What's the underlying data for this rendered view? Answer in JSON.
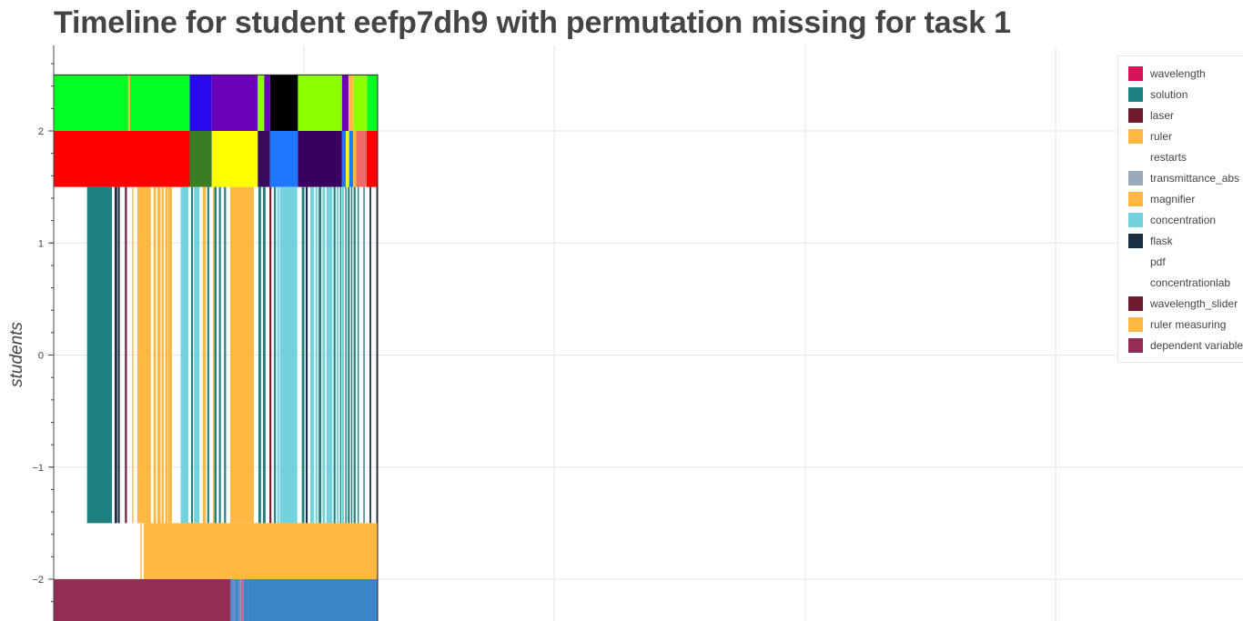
{
  "chart_data": {
    "type": "timeline",
    "title": "Timeline for student eefp7dh9 with permutation missing for task 1",
    "ylabel": "students",
    "yticks": [
      2,
      1,
      0,
      -1,
      -2
    ],
    "ytick_labels": [
      "2",
      "1",
      "0",
      "−1",
      "−2"
    ],
    "grid": true,
    "legend_position": "top-right",
    "legend": [
      {
        "label": "wavelength",
        "color": "#d6145c"
      },
      {
        "label": "solution",
        "color": "#1f8080"
      },
      {
        "label": "laser",
        "color": "#6e1a2e"
      },
      {
        "label": "ruler",
        "color": "#ffb844"
      },
      {
        "label": "restarts",
        "color": "#ffffff"
      },
      {
        "label": "transmittance_abs",
        "color": "#9aa8bb"
      },
      {
        "label": "magnifier",
        "color": "#ffb844"
      },
      {
        "label": "concentration",
        "color": "#74d2dc"
      },
      {
        "label": "flask",
        "color": "#1b2d45"
      },
      {
        "label": "pdf",
        "color": "#ffffff"
      },
      {
        "label": "concentrationlab",
        "color": "#ffffff"
      },
      {
        "label": "wavelength_slider",
        "color": "#6e1a2e"
      },
      {
        "label": "ruler measuring",
        "color": "#ffb844"
      },
      {
        "label": "dependent variable",
        "color": "#922d55"
      }
    ],
    "rows": [
      {
        "name": "row-top",
        "y0": 2.0,
        "y1": 2.5,
        "segments": [
          {
            "t0": 0.0,
            "t1": 0.23,
            "color": "#00ff22"
          },
          {
            "t0": 0.23,
            "t1": 0.236,
            "color": "#ffb844"
          },
          {
            "t0": 0.236,
            "t1": 0.42,
            "color": "#00ff22"
          },
          {
            "t0": 0.42,
            "t1": 0.488,
            "color": "#2a08f0"
          },
          {
            "t0": 0.488,
            "t1": 0.63,
            "color": "#6a00b8"
          },
          {
            "t0": 0.63,
            "t1": 0.65,
            "color": "#8cff00"
          },
          {
            "t0": 0.65,
            "t1": 0.668,
            "color": "#6a00b8"
          },
          {
            "t0": 0.668,
            "t1": 0.754,
            "color": "#000000"
          },
          {
            "t0": 0.754,
            "t1": 0.89,
            "color": "#8cff00"
          },
          {
            "t0": 0.89,
            "t1": 0.91,
            "color": "#6a00b8"
          },
          {
            "t0": 0.91,
            "t1": 0.926,
            "color": "#ffb844"
          },
          {
            "t0": 0.926,
            "t1": 0.968,
            "color": "#8cff00"
          },
          {
            "t0": 0.968,
            "t1": 1.0,
            "color": "#00ff22"
          }
        ]
      },
      {
        "name": "row-2",
        "y0": 1.5,
        "y1": 2.0,
        "segments": [
          {
            "t0": 0.0,
            "t1": 0.42,
            "color": "#ff0000"
          },
          {
            "t0": 0.42,
            "t1": 0.488,
            "color": "#3a7d24"
          },
          {
            "t0": 0.488,
            "t1": 0.63,
            "color": "#ffff00"
          },
          {
            "t0": 0.63,
            "t1": 0.668,
            "color": "#3a0a5e"
          },
          {
            "t0": 0.668,
            "t1": 0.754,
            "color": "#1f77ff"
          },
          {
            "t0": 0.754,
            "t1": 0.89,
            "color": "#3a0060"
          },
          {
            "t0": 0.89,
            "t1": 0.902,
            "color": "#1f77ff"
          },
          {
            "t0": 0.902,
            "t1": 0.912,
            "color": "#ffff00"
          },
          {
            "t0": 0.912,
            "t1": 0.924,
            "color": "#1f77ff"
          },
          {
            "t0": 0.924,
            "t1": 0.934,
            "color": "#ffb844"
          },
          {
            "t0": 0.934,
            "t1": 0.966,
            "color": "#f06a6a"
          },
          {
            "t0": 0.966,
            "t1": 1.0,
            "color": "#ff0000"
          }
        ]
      },
      {
        "name": "row-1-0-minus1",
        "y0": -1.5,
        "y1": 1.5,
        "segments": [
          {
            "t0": 0.103,
            "t1": 0.18,
            "color": "#1f8080"
          },
          {
            "t0": 0.188,
            "t1": 0.196,
            "color": "#1b2d45"
          },
          {
            "t0": 0.198,
            "t1": 0.204,
            "color": "#1b2d45"
          },
          {
            "t0": 0.22,
            "t1": 0.226,
            "color": "#6e1a2e"
          },
          {
            "t0": 0.242,
            "t1": 0.246,
            "color": "#ffb844"
          },
          {
            "t0": 0.258,
            "t1": 0.3,
            "color": "#ffb844"
          },
          {
            "t0": 0.308,
            "t1": 0.316,
            "color": "#ffb844"
          },
          {
            "t0": 0.32,
            "t1": 0.33,
            "color": "#ffb844"
          },
          {
            "t0": 0.333,
            "t1": 0.34,
            "color": "#ffb844"
          },
          {
            "t0": 0.344,
            "t1": 0.352,
            "color": "#ffb844"
          },
          {
            "t0": 0.353,
            "t1": 0.365,
            "color": "#ffb844"
          },
          {
            "t0": 0.392,
            "t1": 0.416,
            "color": "#74d2dc"
          },
          {
            "t0": 0.424,
            "t1": 0.43,
            "color": "#1f8080"
          },
          {
            "t0": 0.433,
            "t1": 0.45,
            "color": "#74d2dc"
          },
          {
            "t0": 0.46,
            "t1": 0.47,
            "color": "#ffb844"
          },
          {
            "t0": 0.474,
            "t1": 0.48,
            "color": "#1f8080"
          },
          {
            "t0": 0.492,
            "t1": 0.496,
            "color": "#ffb844"
          },
          {
            "t0": 0.496,
            "t1": 0.503,
            "color": "#1f8080"
          },
          {
            "t0": 0.51,
            "t1": 0.516,
            "color": "#1f8080"
          },
          {
            "t0": 0.526,
            "t1": 0.532,
            "color": "#1f8080"
          },
          {
            "t0": 0.545,
            "t1": 0.618,
            "color": "#ffb844"
          },
          {
            "t0": 0.632,
            "t1": 0.64,
            "color": "#1f8080"
          },
          {
            "t0": 0.646,
            "t1": 0.654,
            "color": "#1f8080"
          },
          {
            "t0": 0.666,
            "t1": 0.672,
            "color": "#6e1a2e"
          },
          {
            "t0": 0.68,
            "t1": 0.686,
            "color": "#1f8080"
          },
          {
            "t0": 0.69,
            "t1": 0.696,
            "color": "#74d2dc"
          },
          {
            "t0": 0.698,
            "t1": 0.752,
            "color": "#74d2dc"
          },
          {
            "t0": 0.766,
            "t1": 0.774,
            "color": "#1f8080"
          },
          {
            "t0": 0.778,
            "t1": 0.784,
            "color": "#1b2d45"
          },
          {
            "t0": 0.792,
            "t1": 0.804,
            "color": "#74d2dc"
          },
          {
            "t0": 0.808,
            "t1": 0.814,
            "color": "#74d2dc"
          },
          {
            "t0": 0.818,
            "t1": 0.826,
            "color": "#1f8080"
          },
          {
            "t0": 0.83,
            "t1": 0.838,
            "color": "#74d2dc"
          },
          {
            "t0": 0.842,
            "t1": 0.86,
            "color": "#74d2dc"
          },
          {
            "t0": 0.864,
            "t1": 0.87,
            "color": "#1f8080"
          },
          {
            "t0": 0.874,
            "t1": 0.88,
            "color": "#74d2dc"
          },
          {
            "t0": 0.884,
            "t1": 0.888,
            "color": "#1f8080"
          },
          {
            "t0": 0.89,
            "t1": 0.896,
            "color": "#74d2dc"
          },
          {
            "t0": 0.9,
            "t1": 0.904,
            "color": "#1f8080"
          },
          {
            "t0": 0.908,
            "t1": 0.914,
            "color": "#1f8080"
          },
          {
            "t0": 0.918,
            "t1": 0.922,
            "color": "#1f8080"
          },
          {
            "t0": 0.926,
            "t1": 0.932,
            "color": "#1f8080"
          },
          {
            "t0": 0.938,
            "t1": 0.942,
            "color": "#1f8080"
          },
          {
            "t0": 0.956,
            "t1": 0.96,
            "color": "#1f8080"
          },
          {
            "t0": 0.975,
            "t1": 0.98,
            "color": "#1b2d45"
          },
          {
            "t0": 0.996,
            "t1": 1.0,
            "color": "#1b2d45"
          }
        ]
      },
      {
        "name": "row-minus2",
        "y0": -2.0,
        "y1": -1.5,
        "segments": [
          {
            "t0": 0.268,
            "t1": 0.272,
            "color": "#ffb844"
          },
          {
            "t0": 0.278,
            "t1": 1.0,
            "color": "#ffb844"
          }
        ]
      },
      {
        "name": "row-bottom",
        "y0": -2.5,
        "y1": -2.0,
        "segments": [
          {
            "t0": 0.0,
            "t1": 0.545,
            "color": "#922d55"
          },
          {
            "t0": 0.545,
            "t1": 0.552,
            "color": "#4f86c6"
          },
          {
            "t0": 0.552,
            "t1": 0.56,
            "color": "#6a8fd0"
          },
          {
            "t0": 0.56,
            "t1": 0.57,
            "color": "#3c86c7"
          },
          {
            "t0": 0.57,
            "t1": 0.578,
            "color": "#6a8fd0"
          },
          {
            "t0": 0.578,
            "t1": 0.586,
            "color": "#c86a8a"
          },
          {
            "t0": 0.586,
            "t1": 0.6,
            "color": "#3c86c7"
          },
          {
            "t0": 0.6,
            "t1": 1.0,
            "color": "#3c86c7"
          }
        ]
      }
    ]
  }
}
